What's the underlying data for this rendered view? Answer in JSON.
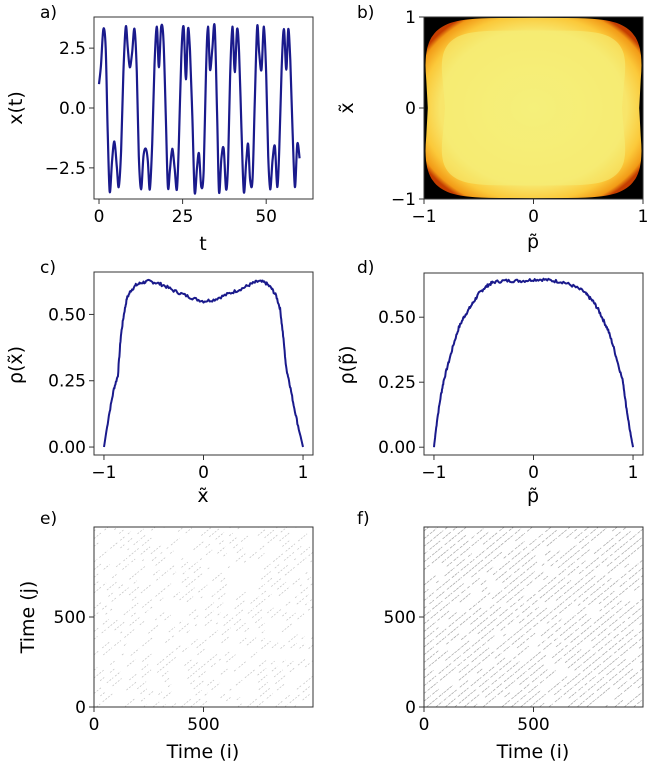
{
  "figure": {
    "line_color": "#1a1a8c",
    "axes_color": "#333333"
  },
  "chart_data": [
    {
      "id": "a",
      "panel_label": "a)",
      "type": "line",
      "title": "",
      "xlabel": "t",
      "ylabel": "x(t)",
      "xlim": [
        -1.5,
        64
      ],
      "ylim": [
        -3.8,
        3.8
      ],
      "xticks": [
        0,
        25,
        50
      ],
      "xtick_labels": [
        "0",
        "25",
        "50"
      ],
      "yticks": [
        2.5,
        0.0,
        -2.5
      ],
      "ytick_labels": [
        "2.5",
        "0.0",
        "−2.5"
      ],
      "series": [
        {
          "name": "x(t)",
          "color": "#1a1a8c",
          "x": [
            0,
            0.6,
            1.3,
            2.0,
            2.6,
            3.2,
            3.9,
            4.6,
            5.3,
            5.9,
            6.6,
            7.3,
            8.0,
            8.6,
            9.2,
            9.9,
            10.6,
            11.3,
            11.9,
            12.6,
            13.3,
            14.0,
            14.6,
            15.2,
            15.9,
            16.6,
            17.3,
            17.9,
            18.6,
            19.3,
            20.0,
            20.6,
            21.2,
            21.9,
            22.6,
            23.3,
            23.9,
            24.6,
            25.3,
            26.0,
            26.6,
            27.2,
            27.9,
            28.6,
            29.3,
            29.9,
            30.6,
            31.3,
            32.0,
            32.6,
            33.2,
            33.9,
            34.6,
            35.3,
            35.9,
            36.6,
            37.3,
            38.0,
            38.6,
            39.2,
            39.9,
            40.6,
            41.3,
            41.9,
            42.6,
            43.3,
            44.0,
            44.6,
            45.2,
            45.9,
            46.6,
            47.3,
            47.9,
            48.6,
            49.3,
            50.0,
            50.6,
            51.2,
            51.9,
            52.6,
            53.3,
            53.9,
            54.6,
            55.3,
            56.0,
            56.6,
            57.2,
            57.9,
            58.6,
            59.3,
            60.0
          ],
          "y": [
            1.0,
            1.8,
            3.3,
            2.5,
            -1.0,
            -3.5,
            -2.2,
            -1.4,
            -2.4,
            -3.3,
            -1.8,
            1.5,
            3.4,
            2.5,
            1.7,
            2.3,
            3.3,
            1.5,
            -2.0,
            -3.4,
            -2.0,
            -1.7,
            -2.2,
            -3.4,
            -1.5,
            1.8,
            3.4,
            1.7,
            3.4,
            2.8,
            -0.5,
            -3.3,
            -2.6,
            -1.7,
            -2.5,
            -3.4,
            -1.4,
            2.1,
            3.4,
            1.2,
            3.3,
            2.4,
            -0.3,
            -3.5,
            -2.5,
            -1.9,
            -3.3,
            -2.6,
            1.5,
            3.4,
            1.6,
            2.5,
            3.4,
            -0.1,
            -3.5,
            -2.1,
            -1.7,
            -3.4,
            -2.3,
            1.3,
            3.4,
            1.5,
            3.3,
            2.3,
            -0.8,
            -3.5,
            -2.3,
            -1.5,
            -3.0,
            -3.0,
            0.3,
            3.4,
            2.3,
            1.6,
            3.4,
            1.4,
            -2.0,
            -3.4,
            -2.2,
            -1.6,
            -3.3,
            -1.8,
            1.6,
            3.3,
            1.6,
            3.3,
            2.0,
            -1.0,
            -3.3,
            -1.5,
            -2.1
          ]
        }
      ]
    },
    {
      "id": "b",
      "panel_label": "b)",
      "type": "heatmap",
      "title": "",
      "xlabel": "p̃",
      "ylabel": "x̃",
      "xlim": [
        -1,
        1
      ],
      "ylim": [
        -1,
        1
      ],
      "xticks": [
        -1,
        0,
        1
      ],
      "xtick_labels": [
        "−1",
        "0",
        "1"
      ],
      "yticks": [
        1,
        0,
        -1
      ],
      "ytick_labels": [
        "1",
        "0",
        "−1"
      ],
      "colormap": [
        "#000000",
        "#b22200",
        "#f28c10",
        "#fbc93a",
        "#f7ef7c"
      ],
      "description": "Phase-space density: uniform bright yellow filling a rounded square bounded roughly by |p|<=1 and |x|<=1, with concave (pinched) left/right edges near x=0 and black corners outside"
    },
    {
      "id": "c",
      "panel_label": "c)",
      "type": "line",
      "title": "",
      "xlabel": "x̃",
      "ylabel": "ρ(x̃)",
      "xlim": [
        -1.1,
        1.1
      ],
      "ylim": [
        -0.03,
        0.66
      ],
      "xticks": [
        -1,
        0,
        1
      ],
      "xtick_labels": [
        "−1",
        "0",
        "1"
      ],
      "yticks": [
        0.0,
        0.25,
        0.5
      ],
      "ytick_labels": [
        "0.00",
        "0.25",
        "0.50"
      ],
      "series": [
        {
          "name": "rho_x",
          "color": "#1a1a8c",
          "x": [
            -1.0,
            -0.95,
            -0.9,
            -0.86,
            -0.83,
            -0.8,
            -0.77,
            -0.73,
            -0.68,
            -0.62,
            -0.55,
            -0.48,
            -0.4,
            -0.3,
            -0.2,
            -0.1,
            0.0,
            0.1,
            0.2,
            0.3,
            0.4,
            0.48,
            0.55,
            0.62,
            0.68,
            0.73,
            0.77,
            0.8,
            0.83,
            0.86,
            0.9,
            0.95,
            1.0
          ],
          "y": [
            0.0,
            0.12,
            0.22,
            0.27,
            0.42,
            0.5,
            0.56,
            0.59,
            0.61,
            0.62,
            0.625,
            0.62,
            0.61,
            0.59,
            0.575,
            0.56,
            0.55,
            0.555,
            0.57,
            0.585,
            0.6,
            0.615,
            0.625,
            0.62,
            0.6,
            0.57,
            0.52,
            0.42,
            0.3,
            0.25,
            0.17,
            0.08,
            0.0
          ]
        }
      ]
    },
    {
      "id": "d",
      "panel_label": "d)",
      "type": "line",
      "title": "",
      "xlabel": "p̃",
      "ylabel": "ρ(p̃)",
      "xlim": [
        -1.1,
        1.1
      ],
      "ylim": [
        -0.03,
        0.67
      ],
      "xticks": [
        -1,
        0,
        1
      ],
      "xtick_labels": [
        "−1",
        "0",
        "1"
      ],
      "yticks": [
        0.0,
        0.25,
        0.5
      ],
      "ytick_labels": [
        "0.00",
        "0.25",
        "0.50"
      ],
      "series": [
        {
          "name": "rho_p",
          "color": "#1a1a8c",
          "x": [
            -1.0,
            -0.97,
            -0.93,
            -0.9,
            -0.85,
            -0.8,
            -0.75,
            -0.7,
            -0.65,
            -0.6,
            -0.55,
            -0.5,
            -0.45,
            -0.4,
            -0.3,
            -0.2,
            -0.1,
            0.0,
            0.1,
            0.2,
            0.3,
            0.4,
            0.5,
            0.55,
            0.6,
            0.65,
            0.7,
            0.75,
            0.8,
            0.85,
            0.9,
            0.93,
            0.97,
            1.0
          ],
          "y": [
            0.0,
            0.1,
            0.2,
            0.26,
            0.33,
            0.4,
            0.46,
            0.5,
            0.53,
            0.56,
            0.59,
            0.61,
            0.625,
            0.635,
            0.64,
            0.64,
            0.64,
            0.645,
            0.645,
            0.64,
            0.635,
            0.62,
            0.6,
            0.58,
            0.56,
            0.53,
            0.49,
            0.45,
            0.39,
            0.32,
            0.25,
            0.16,
            0.06,
            0.0
          ]
        }
      ]
    },
    {
      "id": "e",
      "panel_label": "e)",
      "type": "heatmap",
      "title": "",
      "xlabel": "Time (i)",
      "ylabel": "Time (j)",
      "xlim": [
        0,
        1000
      ],
      "ylim": [
        0,
        1000
      ],
      "xticks": [
        0,
        500
      ],
      "xtick_labels": [
        "0",
        "500"
      ],
      "yticks": [
        0,
        500
      ],
      "ytick_labels": [
        "0",
        "500"
      ],
      "colormap": [
        "#ffffff",
        "#9a9a9a"
      ],
      "description": "Recurrence plot: sparse, faint diagonal dashed lines of recurrence points parallel to the main diagonal",
      "diagonal_spacing": 43,
      "density": 0.35
    },
    {
      "id": "f",
      "panel_label": "f)",
      "type": "heatmap",
      "title": "",
      "xlabel": "Time (i)",
      "ylabel": "",
      "xlim": [
        0,
        1000
      ],
      "ylim": [
        0,
        1000
      ],
      "xticks": [
        0,
        500
      ],
      "xtick_labels": [
        "0",
        "500"
      ],
      "yticks": [
        0,
        500
      ],
      "ytick_labels": [
        "0",
        "500"
      ],
      "colormap": [
        "#ffffff",
        "#8a8a8a"
      ],
      "description": "Recurrence plot: regular, more continuous diagonal lines parallel to the main diagonal",
      "diagonal_spacing": 43,
      "density": 0.75
    }
  ]
}
